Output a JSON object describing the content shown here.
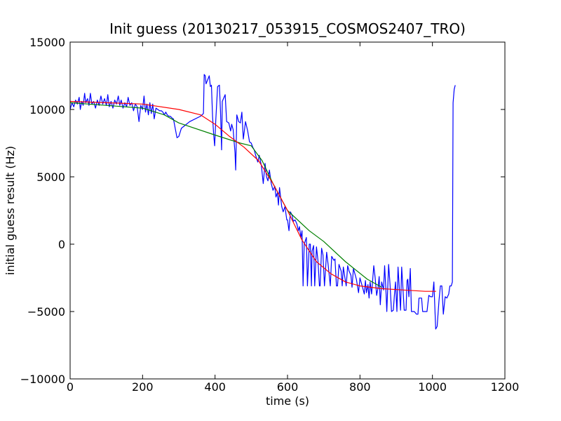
{
  "chart_data": {
    "type": "line",
    "title": "Init guess (20130217_053915_COSMOS2407_TRO)",
    "xlabel": "time (s)",
    "ylabel": "initial guess result (Hz)",
    "xlim": [
      0,
      1200
    ],
    "ylim": [
      -10000,
      15000
    ],
    "xticks": [
      0,
      200,
      400,
      600,
      800,
      1000,
      1200
    ],
    "yticks": [
      -10000,
      -5000,
      0,
      5000,
      10000,
      15000
    ],
    "grid": false,
    "legend": "none",
    "series": [
      {
        "color": "#0000ff",
        "points": [
          [
            0,
            10000
          ],
          [
            5,
            10500
          ],
          [
            10,
            10200
          ],
          [
            15,
            10700
          ],
          [
            20,
            10400
          ],
          [
            25,
            10900
          ],
          [
            28,
            10000
          ],
          [
            32,
            10600
          ],
          [
            36,
            10300
          ],
          [
            40,
            11200
          ],
          [
            43,
            10500
          ],
          [
            48,
            10800
          ],
          [
            52,
            10300
          ],
          [
            56,
            11200
          ],
          [
            60,
            10400
          ],
          [
            65,
            10600
          ],
          [
            70,
            10100
          ],
          [
            75,
            10700
          ],
          [
            80,
            10300
          ],
          [
            85,
            11000
          ],
          [
            90,
            10400
          ],
          [
            95,
            10800
          ],
          [
            100,
            10300
          ],
          [
            104,
            11100
          ],
          [
            108,
            10200
          ],
          [
            113,
            10600
          ],
          [
            118,
            10100
          ],
          [
            123,
            10700
          ],
          [
            128,
            10400
          ],
          [
            133,
            11000
          ],
          [
            137,
            10300
          ],
          [
            141,
            10700
          ],
          [
            146,
            10100
          ],
          [
            151,
            10500
          ],
          [
            156,
            10200
          ],
          [
            160,
            10900
          ],
          [
            165,
            10300
          ],
          [
            170,
            10500
          ],
          [
            175,
            9900
          ],
          [
            180,
            10400
          ],
          [
            185,
            10200
          ],
          [
            190,
            9100
          ],
          [
            195,
            10300
          ],
          [
            200,
            10000
          ],
          [
            204,
            11000
          ],
          [
            208,
            9800
          ],
          [
            212,
            10400
          ],
          [
            216,
            9600
          ],
          [
            220,
            10500
          ],
          [
            224,
            9700
          ],
          [
            228,
            10400
          ],
          [
            232,
            9300
          ],
          [
            237,
            10100
          ],
          [
            242,
            10000
          ],
          [
            247,
            9900
          ],
          [
            252,
            9900
          ],
          [
            256,
            9800
          ],
          [
            260,
            9600
          ],
          [
            264,
            9800
          ],
          [
            268,
            9600
          ],
          [
            272,
            9500
          ],
          [
            276,
            9500
          ],
          [
            280,
            9400
          ],
          [
            284,
            9300
          ],
          [
            285,
            9300
          ],
          [
            295,
            7900
          ],
          [
            300,
            8000
          ],
          [
            307,
            8600
          ],
          [
            330,
            9100
          ],
          [
            360,
            9500
          ],
          [
            368,
            9700
          ],
          [
            370,
            12600
          ],
          [
            373,
            12500
          ],
          [
            375,
            11900
          ],
          [
            384,
            12500
          ],
          [
            387,
            11700
          ],
          [
            390,
            11800
          ],
          [
            393,
            9500
          ],
          [
            396,
            8200
          ],
          [
            399,
            7300
          ],
          [
            402,
            9200
          ],
          [
            407,
            11700
          ],
          [
            412,
            11800
          ],
          [
            415,
            9900
          ],
          [
            418,
            7000
          ],
          [
            420,
            10600
          ],
          [
            428,
            11100
          ],
          [
            432,
            9100
          ],
          [
            438,
            9000
          ],
          [
            443,
            8400
          ],
          [
            446,
            8900
          ],
          [
            450,
            8500
          ],
          [
            455,
            6800
          ],
          [
            457,
            5500
          ],
          [
            460,
            9600
          ],
          [
            465,
            9100
          ],
          [
            470,
            9000
          ],
          [
            474,
            9800
          ],
          [
            478,
            7800
          ],
          [
            484,
            9100
          ],
          [
            490,
            8400
          ],
          [
            495,
            7600
          ],
          [
            500,
            7500
          ],
          [
            504,
            7200
          ],
          [
            508,
            7000
          ],
          [
            513,
            6500
          ],
          [
            518,
            6100
          ],
          [
            522,
            6600
          ],
          [
            528,
            5800
          ],
          [
            533,
            4500
          ],
          [
            538,
            6000
          ],
          [
            542,
            5000
          ],
          [
            546,
            4700
          ],
          [
            550,
            5500
          ],
          [
            555,
            4500
          ],
          [
            560,
            4000
          ],
          [
            565,
            4300
          ],
          [
            568,
            3500
          ],
          [
            572,
            3800
          ],
          [
            575,
            2900
          ],
          [
            578,
            4200
          ],
          [
            584,
            2800
          ],
          [
            588,
            2400
          ],
          [
            593,
            2800
          ],
          [
            596,
            2200
          ],
          [
            598,
            1800
          ],
          [
            600,
            1800
          ],
          [
            604,
            1000
          ],
          [
            608,
            2400
          ],
          [
            612,
            2200
          ],
          [
            616,
            1700
          ],
          [
            621,
            1800
          ],
          [
            626,
            1500
          ],
          [
            630,
            1000
          ],
          [
            633,
            1300
          ],
          [
            637,
            500
          ],
          [
            640,
            1000
          ],
          [
            643,
            -3100
          ],
          [
            646,
            0
          ],
          [
            652,
            500
          ],
          [
            655,
            -3100
          ],
          [
            660,
            0
          ],
          [
            663,
            0
          ],
          [
            666,
            -3100
          ],
          [
            668,
            -500
          ],
          [
            672,
            -100
          ],
          [
            675,
            -3100
          ],
          [
            680,
            -200
          ],
          [
            684,
            -1200
          ],
          [
            688,
            -3100
          ],
          [
            690,
            -3100
          ],
          [
            694,
            -300
          ],
          [
            698,
            -800
          ],
          [
            702,
            -3100
          ],
          [
            708,
            -600
          ],
          [
            712,
            -1500
          ],
          [
            718,
            -3100
          ],
          [
            722,
            -900
          ],
          [
            728,
            -1200
          ],
          [
            731,
            -1100
          ],
          [
            735,
            -3100
          ],
          [
            738,
            -3100
          ],
          [
            742,
            -1500
          ],
          [
            748,
            -2000
          ],
          [
            751,
            -3100
          ],
          [
            754,
            -1700
          ],
          [
            758,
            -2400
          ],
          [
            762,
            -3100
          ],
          [
            766,
            -1600
          ],
          [
            770,
            -2000
          ],
          [
            775,
            -2300
          ],
          [
            778,
            -3200
          ],
          [
            782,
            -1800
          ],
          [
            790,
            -2600
          ],
          [
            796,
            -3600
          ],
          [
            800,
            -2500
          ],
          [
            808,
            -3300
          ],
          [
            812,
            -3700
          ],
          [
            815,
            -2700
          ],
          [
            818,
            -3600
          ],
          [
            822,
            -3000
          ],
          [
            825,
            -4000
          ],
          [
            828,
            -2800
          ],
          [
            832,
            -3700
          ],
          [
            838,
            -1600
          ],
          [
            842,
            -2500
          ],
          [
            846,
            -3800
          ],
          [
            850,
            -3200
          ],
          [
            853,
            -2400
          ],
          [
            856,
            -4500
          ],
          [
            860,
            -2800
          ],
          [
            865,
            -3400
          ],
          [
            868,
            -1600
          ],
          [
            872,
            -3600
          ],
          [
            874,
            -5000
          ],
          [
            879,
            -1500
          ],
          [
            883,
            -3000
          ],
          [
            887,
            -5000
          ],
          [
            892,
            -4900
          ],
          [
            895,
            -3800
          ],
          [
            898,
            -2800
          ],
          [
            902,
            -5000
          ],
          [
            905,
            -1700
          ],
          [
            908,
            -3000
          ],
          [
            912,
            -4900
          ],
          [
            915,
            -1700
          ],
          [
            918,
            -3000
          ],
          [
            922,
            -4900
          ],
          [
            927,
            -4900
          ],
          [
            930,
            -2700
          ],
          [
            932,
            -2600
          ],
          [
            935,
            -3900
          ],
          [
            939,
            -1800
          ],
          [
            942,
            -5000
          ],
          [
            950,
            -5000
          ],
          [
            956,
            -5200
          ],
          [
            960,
            -5200
          ],
          [
            963,
            -4000
          ],
          [
            966,
            -4000
          ],
          [
            970,
            -4000
          ],
          [
            973,
            -5000
          ],
          [
            978,
            -5000
          ],
          [
            985,
            -5000
          ],
          [
            990,
            -3800
          ],
          [
            995,
            -3900
          ],
          [
            1000,
            -3900
          ],
          [
            1004,
            -2800
          ],
          [
            1009,
            -6300
          ],
          [
            1013,
            -6100
          ],
          [
            1018,
            -4200
          ],
          [
            1022,
            -3100
          ],
          [
            1026,
            -3100
          ],
          [
            1030,
            -5200
          ],
          [
            1035,
            -3900
          ],
          [
            1040,
            -4000
          ],
          [
            1045,
            -3700
          ],
          [
            1048,
            -3100
          ],
          [
            1052,
            -3100
          ],
          [
            1055,
            -2800
          ],
          [
            1057,
            10500
          ],
          [
            1060,
            11500
          ],
          [
            1063,
            11800
          ]
        ]
      },
      {
        "color": "#008000",
        "points": [
          [
            0,
            10500
          ],
          [
            100,
            10300
          ],
          [
            200,
            10100
          ],
          [
            260,
            9600
          ],
          [
            300,
            9000
          ],
          [
            400,
            8100
          ],
          [
            470,
            7500
          ],
          [
            500,
            7300
          ],
          [
            530,
            6200
          ],
          [
            560,
            4500
          ],
          [
            600,
            2500
          ],
          [
            660,
            1000
          ],
          [
            700,
            200
          ],
          [
            760,
            -1300
          ],
          [
            820,
            -2600
          ],
          [
            860,
            -3200
          ]
        ]
      },
      {
        "color": "#ff0000",
        "points": [
          [
            0,
            10600
          ],
          [
            100,
            10500
          ],
          [
            200,
            10400
          ],
          [
            300,
            10000
          ],
          [
            360,
            9600
          ],
          [
            400,
            8900
          ],
          [
            440,
            8000
          ],
          [
            480,
            7200
          ],
          [
            520,
            6200
          ],
          [
            560,
            4500
          ],
          [
            600,
            2500
          ],
          [
            640,
            300
          ],
          [
            680,
            -1300
          ],
          [
            720,
            -2200
          ],
          [
            760,
            -2800
          ],
          [
            800,
            -3100
          ],
          [
            860,
            -3300
          ],
          [
            920,
            -3400
          ],
          [
            980,
            -3500
          ],
          [
            1010,
            -3500
          ]
        ]
      }
    ]
  }
}
